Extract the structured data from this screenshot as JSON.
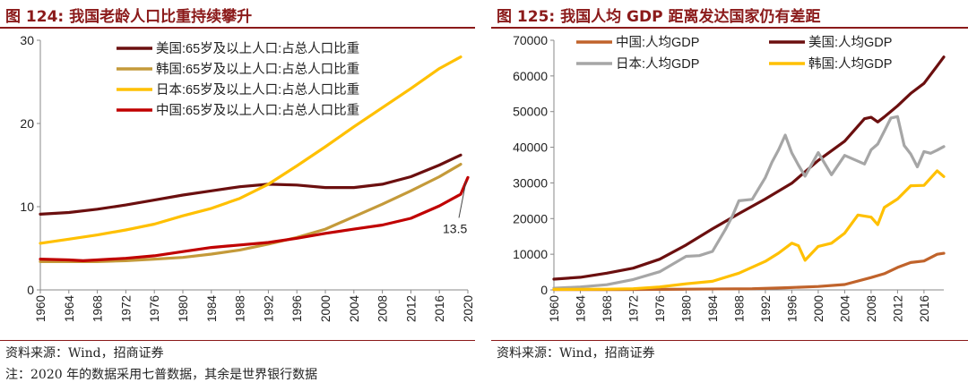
{
  "left": {
    "title": "图 124:  我国老龄人口比重持续攀升",
    "source": "资料来源：Wind，招商证券",
    "note": "注：2020 年的数据采用七普数据，其余是世界银行数据",
    "annotation": "13.5"
  },
  "right": {
    "title": "图 125:  我国人均 GDP 距离发达国家仍有差距",
    "source": "资料来源：Wind，招商证券"
  },
  "chart_data": [
    {
      "type": "line",
      "title": "我国老龄人口比重持续攀升",
      "xlabel": "",
      "ylabel": "",
      "xlim": [
        1960,
        2020
      ],
      "ylim": [
        0,
        30
      ],
      "yticks": [
        0,
        10,
        20,
        30
      ],
      "xticks": [
        "1960",
        "1964",
        "1968",
        "1972",
        "1976",
        "1980",
        "1984",
        "1988",
        "1992",
        "1996",
        "2000",
        "2004",
        "2008",
        "2012",
        "2016",
        "2020"
      ],
      "legend_position": "top-left",
      "series": [
        {
          "name": "美国:65岁及以上人口:占总人口比重",
          "color": "#6b0f0f",
          "x": [
            1960,
            1964,
            1968,
            1972,
            1976,
            1980,
            1984,
            1988,
            1992,
            1996,
            2000,
            2004,
            2008,
            2012,
            2016,
            2019
          ],
          "y": [
            9.1,
            9.3,
            9.7,
            10.2,
            10.8,
            11.4,
            11.9,
            12.4,
            12.7,
            12.6,
            12.3,
            12.3,
            12.7,
            13.6,
            15.0,
            16.2
          ]
        },
        {
          "name": "韩国:65岁及以上人口:占总人口比重",
          "color": "#c49a3a",
          "x": [
            1960,
            1964,
            1968,
            1972,
            1976,
            1980,
            1984,
            1988,
            1992,
            1996,
            2000,
            2004,
            2008,
            2012,
            2016,
            2019
          ],
          "y": [
            3.4,
            3.4,
            3.4,
            3.5,
            3.7,
            3.9,
            4.3,
            4.8,
            5.5,
            6.3,
            7.3,
            8.8,
            10.3,
            11.9,
            13.6,
            15.1
          ]
        },
        {
          "name": "日本:65岁及以上人口:占总人口比重",
          "color": "#ffc000",
          "x": [
            1960,
            1964,
            1968,
            1972,
            1976,
            1980,
            1984,
            1988,
            1992,
            1996,
            2000,
            2004,
            2008,
            2012,
            2016,
            2019
          ],
          "y": [
            5.6,
            6.1,
            6.6,
            7.2,
            7.9,
            8.9,
            9.8,
            11.0,
            12.7,
            14.9,
            17.2,
            19.6,
            21.9,
            24.2,
            26.6,
            28.0
          ]
        },
        {
          "name": "中国:65岁及以上人口:占总人口比重",
          "color": "#c00000",
          "x": [
            1960,
            1964,
            1966,
            1968,
            1972,
            1976,
            1980,
            1984,
            1988,
            1992,
            1996,
            2000,
            2004,
            2008,
            2012,
            2016,
            2019,
            2020
          ],
          "y": [
            3.7,
            3.6,
            3.5,
            3.6,
            3.8,
            4.1,
            4.6,
            5.1,
            5.4,
            5.7,
            6.2,
            6.8,
            7.3,
            7.8,
            8.6,
            10.1,
            11.5,
            13.5
          ]
        }
      ]
    },
    {
      "type": "line",
      "title": "我国人均 GDP 距离发达国家仍有差距",
      "xlabel": "",
      "ylabel": "",
      "xlim": [
        1960,
        2019
      ],
      "ylim": [
        0,
        70000
      ],
      "yticks": [
        0,
        10000,
        20000,
        30000,
        40000,
        50000,
        60000,
        70000
      ],
      "xticks": [
        "1960",
        "1964",
        "1968",
        "1972",
        "1976",
        "1980",
        "1984",
        "1988",
        "1992",
        "1996",
        "2000",
        "2004",
        "2008",
        "2012",
        "2016"
      ],
      "legend_position": "top",
      "series": [
        {
          "name": "中国:人均GDP",
          "color": "#c0632b",
          "x": [
            1960,
            1970,
            1980,
            1990,
            1995,
            2000,
            2004,
            2008,
            2010,
            2012,
            2014,
            2016,
            2018,
            2019
          ],
          "y": [
            90,
            110,
            195,
            320,
            610,
            960,
            1510,
            3470,
            4550,
            6300,
            7680,
            8100,
            9980,
            10260
          ]
        },
        {
          "name": "美国:人均GDP",
          "color": "#6b0f0f",
          "x": [
            1960,
            1964,
            1968,
            1972,
            1976,
            1980,
            1984,
            1988,
            1992,
            1996,
            2000,
            2004,
            2007,
            2008,
            2009,
            2010,
            2012,
            2014,
            2016,
            2018,
            2019
          ],
          "y": [
            3000,
            3550,
            4700,
            6100,
            8600,
            12600,
            17100,
            21400,
            25500,
            29900,
            36300,
            41700,
            48000,
            48400,
            47100,
            48500,
            51600,
            55100,
            57900,
            62800,
            65300
          ]
        },
        {
          "name": "日本:人均GDP",
          "color": "#a6a6a6",
          "x": [
            1960,
            1964,
            1968,
            1972,
            1976,
            1980,
            1982,
            1984,
            1986,
            1987,
            1988,
            1990,
            1992,
            1993,
            1994,
            1995,
            1996,
            1997,
            1998,
            2000,
            2002,
            2004,
            2007,
            2008,
            2009,
            2010,
            2011,
            2012,
            2013,
            2014,
            2015,
            2016,
            2017,
            2018,
            2019
          ],
          "y": [
            480,
            840,
            1450,
            2900,
            5100,
            9400,
            9600,
            10800,
            17100,
            20700,
            25000,
            25400,
            31500,
            35800,
            39300,
            43400,
            38400,
            35000,
            31900,
            38500,
            32300,
            37700,
            35300,
            39300,
            40900,
            44500,
            48200,
            48600,
            40500,
            38100,
            34500,
            38800,
            38300,
            39200,
            40200
          ]
        },
        {
          "name": "韩国:人均GDP",
          "color": "#ffc000",
          "x": [
            1960,
            1968,
            1972,
            1976,
            1980,
            1984,
            1988,
            1992,
            1994,
            1996,
            1997,
            1998,
            2000,
            2002,
            2004,
            2006,
            2008,
            2009,
            2010,
            2012,
            2014,
            2016,
            2018,
            2019
          ],
          "y": [
            160,
            200,
            320,
            830,
            1700,
            2400,
            4700,
            8000,
            10300,
            13100,
            12400,
            8300,
            12200,
            13100,
            15900,
            21000,
            20400,
            18300,
            23100,
            25500,
            29200,
            29300,
            33400,
            31800
          ]
        }
      ]
    }
  ]
}
